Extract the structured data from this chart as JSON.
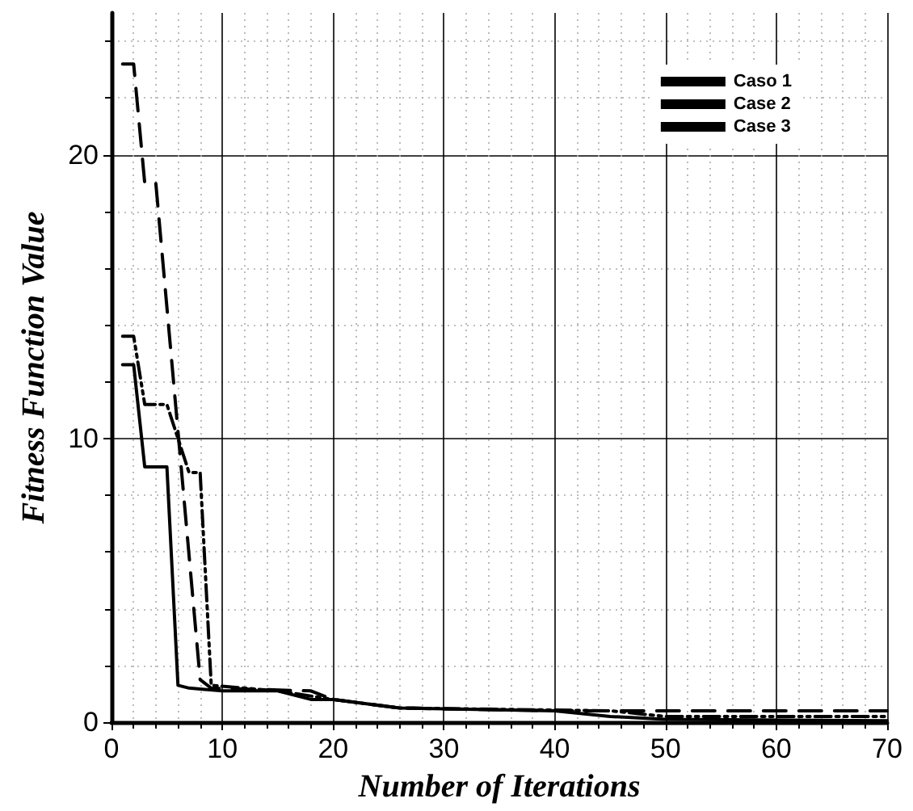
{
  "chart_data": {
    "type": "line",
    "xlabel": "Number of Iterations",
    "ylabel": "Fitness Function Value",
    "xlim": [
      0,
      70
    ],
    "xticks": [
      0,
      10,
      20,
      30,
      40,
      50,
      60,
      70
    ],
    "ylim": [
      0,
      25
    ],
    "yticks": [
      0,
      10,
      20
    ],
    "grid": true,
    "legend": "top right",
    "marker": "none",
    "series": [
      {
        "name": "Caso 1",
        "color": "#000000",
        "line_style": "solid",
        "x": [
          1,
          2,
          3,
          5,
          6,
          7,
          10,
          15,
          18,
          20,
          26,
          40,
          45,
          50,
          70
        ],
        "values": [
          12.6,
          12.6,
          9,
          9,
          1.3,
          1.2,
          1.1,
          1.1,
          0.8,
          0.8,
          0.5,
          0.4,
          0.2,
          0.1,
          0.05
        ]
      },
      {
        "name": "Case 2",
        "color": "#000000",
        "line_style": "dashed",
        "x": [
          1,
          2,
          3,
          4,
          8,
          9,
          18,
          20,
          26,
          40,
          50,
          70
        ],
        "values": [
          23.2,
          23.2,
          19,
          19,
          1.5,
          1.2,
          1.1,
          0.8,
          0.5,
          0.4,
          0.4,
          0.4
        ]
      },
      {
        "name": "Case 3",
        "color": "#000000",
        "line_style": "dashdot",
        "x": [
          1,
          2,
          3,
          5,
          6,
          7,
          8,
          9,
          15,
          20,
          26,
          45,
          50,
          70
        ],
        "values": [
          13.6,
          13.6,
          11.2,
          11.2,
          10,
          8.8,
          8.8,
          1.3,
          1.1,
          0.8,
          0.5,
          0.4,
          0.2,
          0.2
        ]
      }
    ]
  }
}
